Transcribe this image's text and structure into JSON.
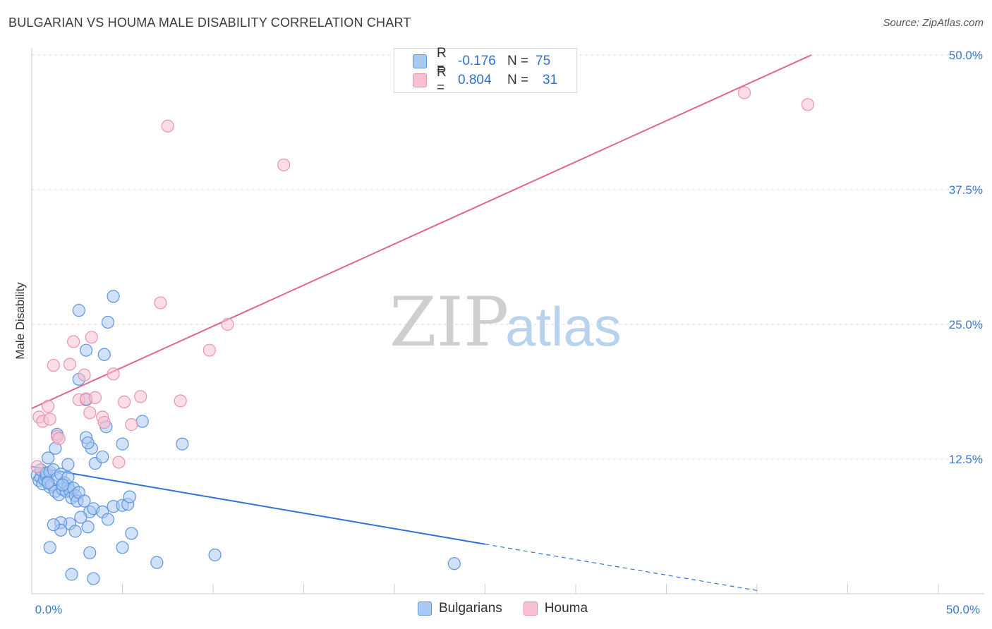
{
  "header": {
    "title": "BULGARIAN VS HOUMA MALE DISABILITY CORRELATION CHART",
    "source": "Source: ZipAtlas.com"
  },
  "watermark": {
    "part1": "ZIP",
    "part2": "atlas"
  },
  "legend": {
    "rows": [
      {
        "r_label": "R =",
        "r_value": "-0.176",
        "n_label": "N =",
        "n_value": "75"
      },
      {
        "r_label": "R =",
        "r_value": "0.804",
        "n_label": "N =",
        "n_value": "31"
      }
    ]
  },
  "bottom_legend": {
    "series1": "Bulgarians",
    "series2": "Houma"
  },
  "colors": {
    "blue_fill": "#a9c9f2",
    "blue_stroke": "#5f95dc",
    "blue_line": "#2f72d3",
    "pink_fill": "#f7c1d2",
    "pink_stroke": "#ea93b0",
    "pink_line": "#e0658f",
    "grid": "#dcdcdc",
    "tick_text": "#3b78d0"
  },
  "chart_data": {
    "type": "scatter",
    "title": "BULGARIAN VS HOUMA MALE DISABILITY CORRELATION CHART",
    "xlabel": "",
    "ylabel": "Male Disability",
    "xlim": [
      0,
      50
    ],
    "ylim": [
      0,
      50
    ],
    "x_tick_labels": {
      "min": "0.0%",
      "max": "50.0%"
    },
    "y_ticks": [
      {
        "value": 12.5,
        "label": "12.5%"
      },
      {
        "value": 25.0,
        "label": "25.0%"
      },
      {
        "value": 37.5,
        "label": "37.5%"
      },
      {
        "value": 50.0,
        "label": "50.0%"
      }
    ],
    "series": [
      {
        "name": "Bulgarians",
        "r": -0.176,
        "n": 75,
        "trend": {
          "x0": 0,
          "y0": 11.8,
          "x1": 25,
          "y1": 4.6,
          "dash_to_x": 40,
          "dash_to_y": 0.3
        },
        "points": [
          [
            0.3,
            11.0
          ],
          [
            0.4,
            10.5
          ],
          [
            0.5,
            10.8
          ],
          [
            0.5,
            11.5
          ],
          [
            0.6,
            10.2
          ],
          [
            0.7,
            10.6
          ],
          [
            0.8,
            10.9
          ],
          [
            0.8,
            11.2
          ],
          [
            0.9,
            10.4
          ],
          [
            1.0,
            11.3
          ],
          [
            1.0,
            9.9
          ],
          [
            1.1,
            10.1
          ],
          [
            1.2,
            11.5
          ],
          [
            1.3,
            9.5
          ],
          [
            1.4,
            10.7
          ],
          [
            1.5,
            9.2
          ],
          [
            1.6,
            11.1
          ],
          [
            1.7,
            9.7
          ],
          [
            1.8,
            10.3
          ],
          [
            1.9,
            9.5
          ],
          [
            2.0,
            10.0
          ],
          [
            2.1,
            9.6
          ],
          [
            2.2,
            8.9
          ],
          [
            2.3,
            9.8
          ],
          [
            2.4,
            9.1
          ],
          [
            2.5,
            8.6
          ],
          [
            2.6,
            9.4
          ],
          [
            2.0,
            12.0
          ],
          [
            1.3,
            13.5
          ],
          [
            0.9,
            12.6
          ],
          [
            1.4,
            14.8
          ],
          [
            3.5,
            12.1
          ],
          [
            3.0,
            14.5
          ],
          [
            3.3,
            13.5
          ],
          [
            3.1,
            14.0
          ],
          [
            2.1,
            6.5
          ],
          [
            1.6,
            6.6
          ],
          [
            1.0,
            4.3
          ],
          [
            1.6,
            5.9
          ],
          [
            1.2,
            6.4
          ],
          [
            2.4,
            5.8
          ],
          [
            3.1,
            6.2
          ],
          [
            3.2,
            7.6
          ],
          [
            2.7,
            7.1
          ],
          [
            2.9,
            8.6
          ],
          [
            3.4,
            7.9
          ],
          [
            3.9,
            7.6
          ],
          [
            4.5,
            8.1
          ],
          [
            5.0,
            8.2
          ],
          [
            5.3,
            8.3
          ],
          [
            5.4,
            9.0
          ],
          [
            4.2,
            6.9
          ],
          [
            5.5,
            5.6
          ],
          [
            3.2,
            3.8
          ],
          [
            5.0,
            4.3
          ],
          [
            3.4,
            1.4
          ],
          [
            2.2,
            1.8
          ],
          [
            6.9,
            2.9
          ],
          [
            10.1,
            3.6
          ],
          [
            23.3,
            2.8
          ],
          [
            4.1,
            15.5
          ],
          [
            3.0,
            18.0
          ],
          [
            2.6,
            19.9
          ],
          [
            2.6,
            26.3
          ],
          [
            4.2,
            25.2
          ],
          [
            4.0,
            22.2
          ],
          [
            3.0,
            22.6
          ],
          [
            4.5,
            27.6
          ],
          [
            6.1,
            16.0
          ],
          [
            8.3,
            13.9
          ],
          [
            5.0,
            13.9
          ],
          [
            3.9,
            12.7
          ],
          [
            2.0,
            10.8
          ],
          [
            1.7,
            10.1
          ],
          [
            0.9,
            10.3
          ]
        ]
      },
      {
        "name": "Houma",
        "r": 0.804,
        "n": 31,
        "trend": {
          "x0": 0,
          "y0": 17.2,
          "x1": 43,
          "y1": 50.0
        },
        "points": [
          [
            0.3,
            11.8
          ],
          [
            0.4,
            16.4
          ],
          [
            0.6,
            16.0
          ],
          [
            0.9,
            17.4
          ],
          [
            1.0,
            16.2
          ],
          [
            1.2,
            21.2
          ],
          [
            1.4,
            14.6
          ],
          [
            1.5,
            14.4
          ],
          [
            2.1,
            21.3
          ],
          [
            2.3,
            23.4
          ],
          [
            2.6,
            18.0
          ],
          [
            2.9,
            20.3
          ],
          [
            3.0,
            18.1
          ],
          [
            3.2,
            16.8
          ],
          [
            3.3,
            23.8
          ],
          [
            3.5,
            18.2
          ],
          [
            3.9,
            16.4
          ],
          [
            4.0,
            15.9
          ],
          [
            4.5,
            20.4
          ],
          [
            4.8,
            12.2
          ],
          [
            5.1,
            17.8
          ],
          [
            5.5,
            15.7
          ],
          [
            6.0,
            18.3
          ],
          [
            7.1,
            27.0
          ],
          [
            7.5,
            43.4
          ],
          [
            8.2,
            17.9
          ],
          [
            9.8,
            22.6
          ],
          [
            10.8,
            25.0
          ],
          [
            13.9,
            39.8
          ],
          [
            39.3,
            46.5
          ],
          [
            42.8,
            45.4
          ]
        ]
      }
    ]
  }
}
